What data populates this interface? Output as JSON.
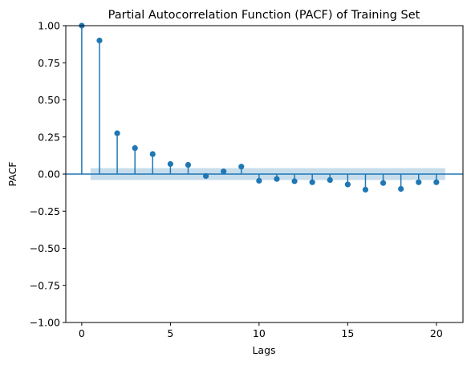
{
  "chart_data": {
    "type": "stem",
    "title": "Partial Autocorrelation Function (PACF) of Training Set",
    "xlabel": "Lags",
    "ylabel": "PACF",
    "xlim": [
      -0.9,
      21.5
    ],
    "ylim": [
      -1.0,
      1.0
    ],
    "xticks": [
      0,
      5,
      10,
      15,
      20
    ],
    "yticks": [
      -1.0,
      -0.75,
      -0.5,
      -0.25,
      0.0,
      0.25,
      0.5,
      0.75,
      1.0
    ],
    "xtick_labels": [
      "0",
      "5",
      "10",
      "15",
      "20"
    ],
    "ytick_labels": [
      "−1.00",
      "−0.75",
      "−0.50",
      "−0.25",
      "0.00",
      "0.25",
      "0.50",
      "0.75",
      "1.00"
    ],
    "grid": false,
    "legend": "none",
    "series": [
      {
        "lags": [
          0,
          1,
          2,
          3,
          4,
          5,
          6,
          7,
          8,
          9,
          10,
          11,
          12,
          13,
          14,
          15,
          16,
          17,
          18,
          19,
          20
        ],
        "values": [
          1.0,
          0.9,
          0.275,
          0.175,
          0.135,
          0.068,
          0.062,
          -0.013,
          0.018,
          0.05,
          -0.045,
          -0.033,
          -0.048,
          -0.055,
          -0.04,
          -0.07,
          -0.105,
          -0.06,
          -0.1,
          -0.055,
          -0.055
        ]
      }
    ],
    "confidence_band": {
      "lag_start": 0.5,
      "lag_end": 20.5,
      "lower": -0.04,
      "upper": 0.04
    },
    "colors": {
      "marker": "#1f77b4",
      "band": "#1f77b4",
      "band_opacity": 0.25,
      "axes": "#000000"
    }
  }
}
